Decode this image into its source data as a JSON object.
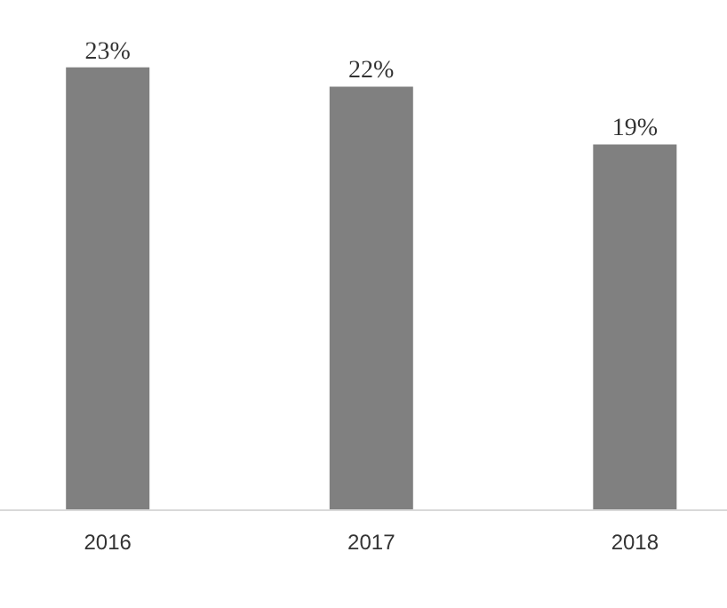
{
  "chart_data": {
    "type": "bar",
    "categories": [
      "2016",
      "2017",
      "2018"
    ],
    "values": [
      23,
      22,
      19
    ],
    "value_labels": [
      "23%",
      "22%",
      "19%"
    ],
    "color": "#808080",
    "grid": false
  }
}
